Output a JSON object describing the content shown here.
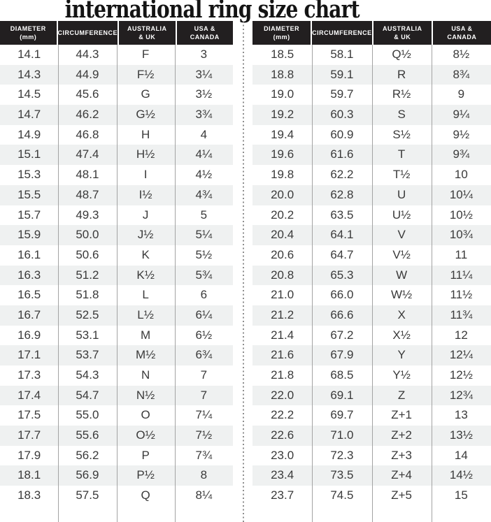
{
  "title": "international ring size chart",
  "header_lines": [
    [
      "DIAMETER",
      "(mm)"
    ],
    [
      "CIRCUMFERENCE"
    ],
    [
      "AUSTRALIA",
      "& UK"
    ],
    [
      "USA &",
      "CANADA"
    ]
  ],
  "colors": {
    "header_bg": "#221f20",
    "header_text": "#ffffff",
    "row_stripe": "#eff1f1",
    "column_line": "#a3a3a3",
    "divider_dots": "#8d8d8d",
    "body_text": "#3a3a3a",
    "title_text": "#141414"
  },
  "chart_data": [
    {
      "type": "table",
      "title": "international ring size chart",
      "columns": [
        "DIAMETER (mm)",
        "CIRCUMFERENCE",
        "AUSTRALIA & UK",
        "USA & CANADA"
      ],
      "rows": [
        [
          "14.1",
          "44.3",
          "F",
          "3"
        ],
        [
          "14.3",
          "44.9",
          "F½",
          "3¼"
        ],
        [
          "14.5",
          "45.6",
          "G",
          "3½"
        ],
        [
          "14.7",
          "46.2",
          "G½",
          "3¾"
        ],
        [
          "14.9",
          "46.8",
          "H",
          "4"
        ],
        [
          "15.1",
          "47.4",
          "H½",
          "4¼"
        ],
        [
          "15.3",
          "48.1",
          "I",
          "4½"
        ],
        [
          "15.5",
          "48.7",
          "I½",
          "4¾"
        ],
        [
          "15.7",
          "49.3",
          "J",
          "5"
        ],
        [
          "15.9",
          "50.0",
          "J½",
          "5¼"
        ],
        [
          "16.1",
          "50.6",
          "K",
          "5½"
        ],
        [
          "16.3",
          "51.2",
          "K½",
          "5¾"
        ],
        [
          "16.5",
          "51.8",
          "L",
          "6"
        ],
        [
          "16.7",
          "52.5",
          "L½",
          "6¼"
        ],
        [
          "16.9",
          "53.1",
          "M",
          "6½"
        ],
        [
          "17.1",
          "53.7",
          "M½",
          "6¾"
        ],
        [
          "17.3",
          "54.3",
          "N",
          "7"
        ],
        [
          "17.4",
          "54.7",
          "N½",
          "7"
        ],
        [
          "17.5",
          "55.0",
          "O",
          "7¼"
        ],
        [
          "17.7",
          "55.6",
          "O½",
          "7½"
        ],
        [
          "17.9",
          "56.2",
          "P",
          "7¾"
        ],
        [
          "18.1",
          "56.9",
          "P½",
          "8"
        ],
        [
          "18.3",
          "57.5",
          "Q",
          "8¼"
        ]
      ]
    },
    {
      "type": "table",
      "columns": [
        "DIAMETER (mm)",
        "CIRCUMFERENCE",
        "AUSTRALIA & UK",
        "USA & CANADA"
      ],
      "rows": [
        [
          "18.5",
          "58.1",
          "Q½",
          "8½"
        ],
        [
          "18.8",
          "59.1",
          "R",
          "8¾"
        ],
        [
          "19.0",
          "59.7",
          "R½",
          "9"
        ],
        [
          "19.2",
          "60.3",
          "S",
          "9¼"
        ],
        [
          "19.4",
          "60.9",
          "S½",
          "9½"
        ],
        [
          "19.6",
          "61.6",
          "T",
          "9¾"
        ],
        [
          "19.8",
          "62.2",
          "T½",
          "10"
        ],
        [
          "20.0",
          "62.8",
          "U",
          "10¼"
        ],
        [
          "20.2",
          "63.5",
          "U½",
          "10½"
        ],
        [
          "20.4",
          "64.1",
          "V",
          "10¾"
        ],
        [
          "20.6",
          "64.7",
          "V½",
          "11"
        ],
        [
          "20.8",
          "65.3",
          "W",
          "11¼"
        ],
        [
          "21.0",
          "66.0",
          "W½",
          "11½"
        ],
        [
          "21.2",
          "66.6",
          "X",
          "11¾"
        ],
        [
          "21.4",
          "67.2",
          "X½",
          "12"
        ],
        [
          "21.6",
          "67.9",
          "Y",
          "12¼"
        ],
        [
          "21.8",
          "68.5",
          "Y½",
          "12½"
        ],
        [
          "22.0",
          "69.1",
          "Z",
          "12¾"
        ],
        [
          "22.2",
          "69.7",
          "Z+1",
          "13"
        ],
        [
          "22.6",
          "71.0",
          "Z+2",
          "13½"
        ],
        [
          "23.0",
          "72.3",
          "Z+3",
          "14"
        ],
        [
          "23.4",
          "73.5",
          "Z+4",
          "14½"
        ],
        [
          "23.7",
          "74.5",
          "Z+5",
          "15"
        ]
      ]
    }
  ]
}
